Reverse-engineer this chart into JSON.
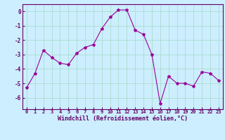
{
  "x": [
    0,
    1,
    2,
    3,
    4,
    5,
    6,
    7,
    8,
    9,
    10,
    11,
    12,
    13,
    14,
    15,
    16,
    17,
    18,
    19,
    20,
    21,
    22,
    23
  ],
  "y": [
    -5.3,
    -4.3,
    -2.7,
    -3.2,
    -3.6,
    -3.7,
    -2.9,
    -2.5,
    -2.3,
    -1.2,
    -0.4,
    0.1,
    0.1,
    -1.3,
    -1.6,
    -3.0,
    -6.4,
    -4.5,
    -5.0,
    -5.0,
    -5.2,
    -4.2,
    -4.3,
    -4.8
  ],
  "line_color": "#990099",
  "marker": "*",
  "marker_size": 3,
  "bg_color": "#cceeff",
  "grid_color": "#aaddcc",
  "xlabel": "Windchill (Refroidissement éolien,°C)",
  "xlabel_color": "#660066",
  "tick_color": "#660066",
  "xlim": [
    -0.5,
    23.5
  ],
  "ylim": [
    -6.8,
    0.5
  ],
  "yticks": [
    0,
    -1,
    -2,
    -3,
    -4,
    -5,
    -6
  ],
  "xticks": [
    0,
    1,
    2,
    3,
    4,
    5,
    6,
    7,
    8,
    9,
    10,
    11,
    12,
    13,
    14,
    15,
    16,
    17,
    18,
    19,
    20,
    21,
    22,
    23
  ],
  "xtick_fontsize": 5.0,
  "ytick_fontsize": 5.5,
  "xlabel_fontsize": 6.0
}
